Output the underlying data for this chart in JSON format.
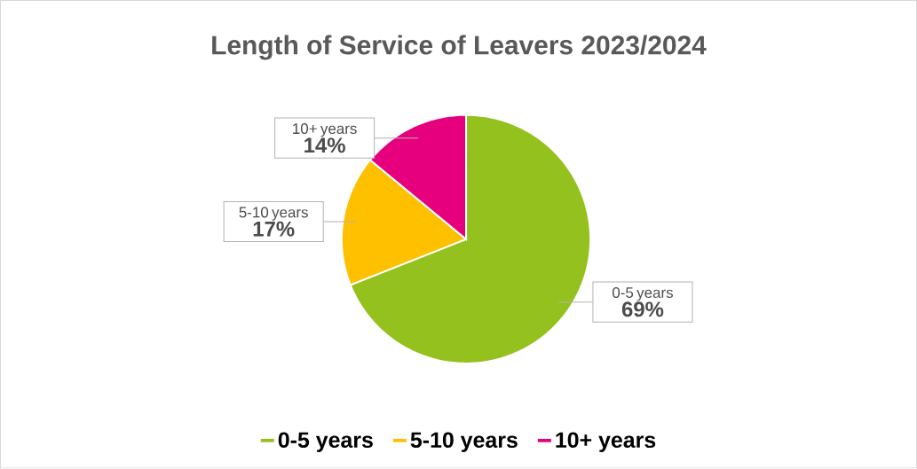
{
  "chart_data": {
    "type": "pie",
    "title": "Length of Service of Leavers 2023/2024",
    "categories": [
      "0-5 years",
      "5-10 years",
      "10+ years"
    ],
    "values": [
      69,
      17,
      14
    ],
    "value_labels": [
      "69%",
      "17%",
      "14%"
    ],
    "colors": [
      "#95c11f",
      "#ffc000",
      "#e6007e"
    ],
    "legend": "bottom"
  }
}
